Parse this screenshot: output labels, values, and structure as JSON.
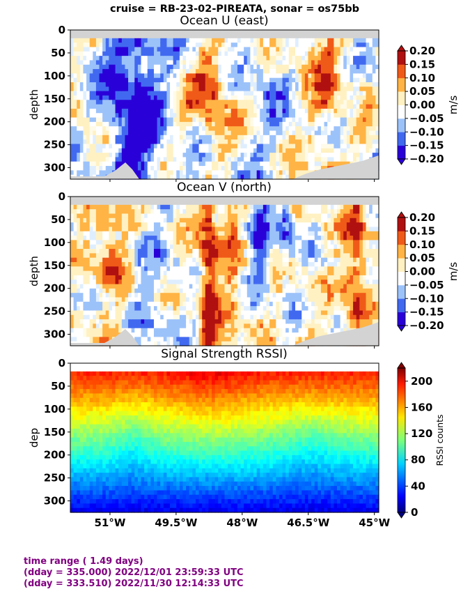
{
  "suptitle": "cruise = RB-23-02-PIREATA,  sonar = os75bb",
  "colors": {
    "land_gray": "#d3d3d3",
    "footer_text": "#800080"
  },
  "x_ticks": {
    "values": [
      -51.0,
      -49.5,
      -48.0,
      -46.5,
      -45.0
    ],
    "labels": [
      "51°W",
      "49.5°W",
      "48°W",
      "46.5°W",
      "45°W"
    ]
  },
  "footer": {
    "line1": "time range ( 1.49 days)",
    "line2": "(dday = 335.000) 2022/12/01 23:59:33 UTC",
    "line3": "(dday = 333.510) 2022/11/30 12:14:33 UTC"
  },
  "chart_data": [
    {
      "type": "heatmap",
      "title": "Ocean U (east)",
      "ylabel": "depth",
      "xlim": [
        -51.9,
        -44.9
      ],
      "ylim": [
        325,
        0
      ],
      "yticks": [
        0,
        50,
        100,
        150,
        200,
        250,
        300
      ],
      "colorbar": {
        "label": "m/s",
        "ticks": [
          "0.20",
          "0.15",
          "0.10",
          "0.05",
          "0.00",
          "−0.05",
          "−0.10",
          "−0.15",
          "−0.20"
        ],
        "scheme": "diverging",
        "range": [
          -0.2,
          0.2
        ]
      },
      "field": "u"
    },
    {
      "type": "heatmap",
      "title": "Ocean V (north)",
      "ylabel": "depth",
      "xlim": [
        -51.9,
        -44.9
      ],
      "ylim": [
        325,
        0
      ],
      "yticks": [
        0,
        50,
        100,
        150,
        200,
        250,
        300
      ],
      "colorbar": {
        "label": "m/s",
        "ticks": [
          "0.20",
          "0.15",
          "0.10",
          "0.05",
          "0.00",
          "−0.05",
          "−0.10",
          "−0.15",
          "−0.20"
        ],
        "scheme": "diverging",
        "range": [
          -0.2,
          0.2
        ]
      },
      "field": "v"
    },
    {
      "type": "heatmap",
      "title": "Signal Strength RSSI)",
      "ylabel": "dep",
      "xlim": [
        -51.9,
        -44.9
      ],
      "ylim": [
        325,
        0
      ],
      "yticks": [
        0,
        50,
        100,
        150,
        200,
        250,
        300
      ],
      "colorbar": {
        "label": "RSSI counts",
        "ticks": [
          "200",
          "160",
          "120",
          "80",
          "40",
          "0"
        ],
        "scheme": "jet",
        "range": [
          0,
          220
        ]
      },
      "field": "rssi"
    }
  ]
}
